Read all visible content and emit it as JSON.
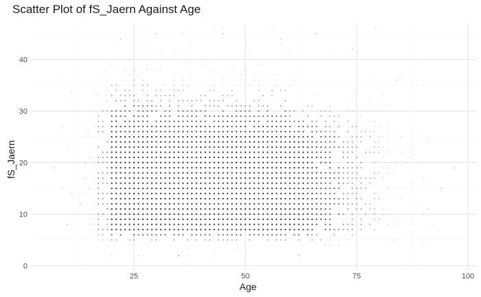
{
  "chart_data": {
    "type": "scatter",
    "title": "Scatter Plot of fS_Jaern Against Age",
    "xlabel": "Age",
    "ylabel": "fS_Jaern",
    "xlim": [
      2,
      102
    ],
    "ylim": [
      -1,
      47
    ],
    "x_ticks": [
      25,
      50,
      75,
      100
    ],
    "y_ticks": [
      0,
      10,
      20,
      30,
      40
    ],
    "grid": true,
    "legend": "none",
    "point_color": "#1a1a1a",
    "density": {
      "description_values": "integer-grid observations; dense core spans ages 18-85 and fS_Jaern 4-30",
      "age_range": [
        7,
        97
      ],
      "value_range": [
        1,
        46
      ]
    },
    "outliers": [
      {
        "x": 7,
        "y": 19
      },
      {
        "x": 10,
        "y": 8
      },
      {
        "x": 11,
        "y": 14
      },
      {
        "x": 13,
        "y": 12
      },
      {
        "x": 14,
        "y": 20
      },
      {
        "x": 79,
        "y": 46
      },
      {
        "x": 97,
        "y": 19
      },
      {
        "x": 94,
        "y": 15
      },
      {
        "x": 91,
        "y": 11
      },
      {
        "x": 45,
        "y": 45
      },
      {
        "x": 30,
        "y": 45
      },
      {
        "x": 22,
        "y": 44
      },
      {
        "x": 35,
        "y": 2
      },
      {
        "x": 62,
        "y": 2
      },
      {
        "x": 66,
        "y": 45
      },
      {
        "x": 74,
        "y": 42
      },
      {
        "x": 84,
        "y": 36
      },
      {
        "x": 58,
        "y": 44
      }
    ]
  }
}
